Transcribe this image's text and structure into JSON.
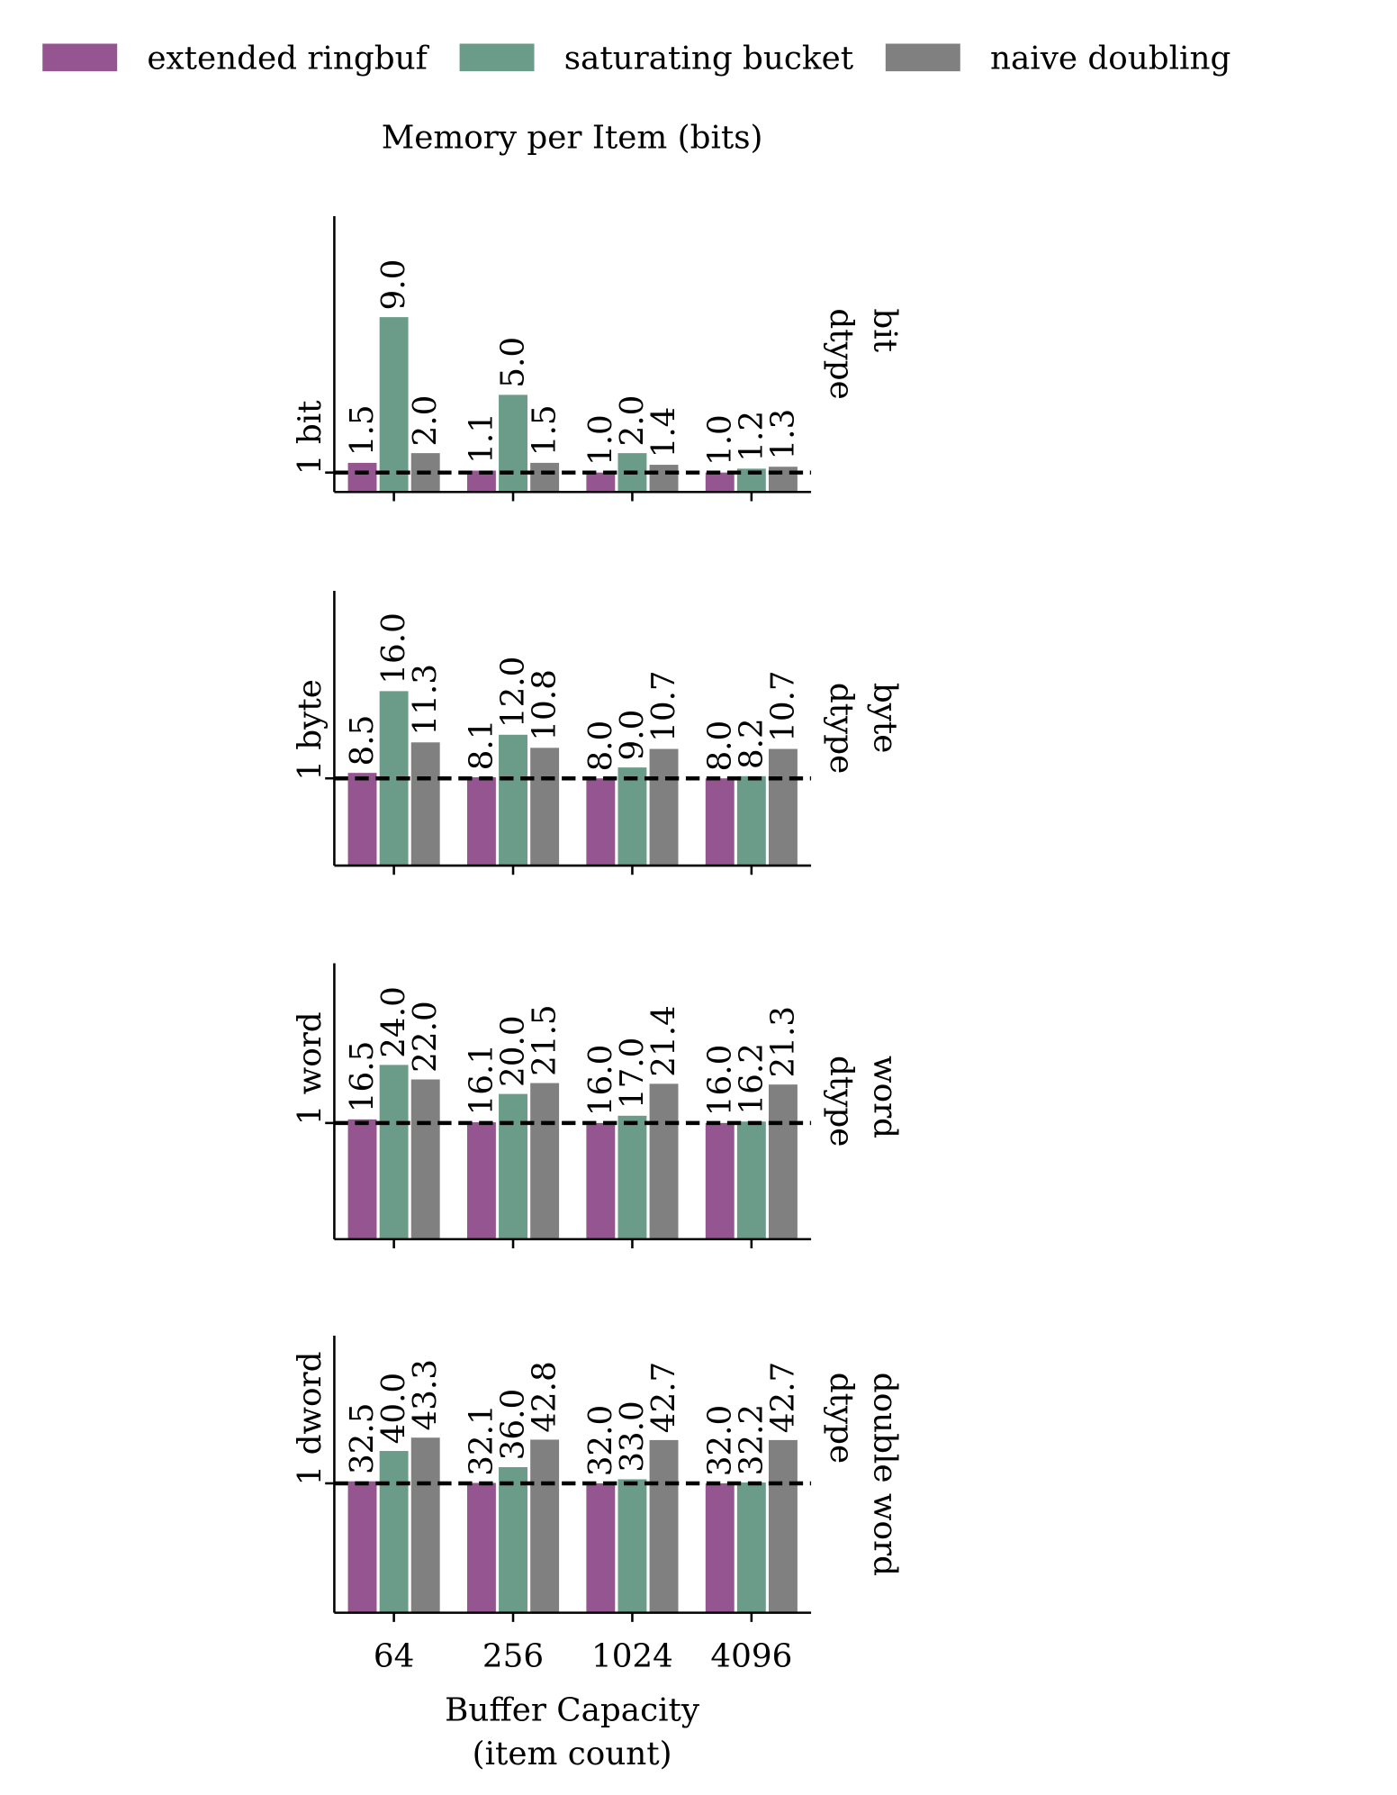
{
  "chart_data": [
    {
      "type": "bar",
      "title": "Memory per Item (bits)",
      "series": [
        {
          "name": "extended ringbuf",
          "color": "#955590",
          "values": [
            1.5,
            1.1,
            1.0,
            1.0
          ],
          "value_labels": [
            "1.5",
            "1.1",
            "1.0",
            "1.0"
          ]
        },
        {
          "name": "saturating bucket",
          "color": "#6a9c89",
          "values": [
            9.0,
            5.0,
            2.0,
            1.2
          ],
          "value_labels": [
            "9.0",
            "5.0",
            "2.0",
            "1.2"
          ]
        },
        {
          "name": "naive doubling",
          "color": "#808080",
          "values": [
            2.0,
            1.5,
            1.4,
            1.3
          ],
          "value_labels": [
            "2.0",
            "1.5",
            "1.4",
            "1.3"
          ]
        }
      ],
      "ylim": [
        0,
        14.2
      ],
      "yticks": [
        {
          "value": 1,
          "label": "1 bit"
        }
      ],
      "reference_line": true,
      "facet_label": [
        "bit",
        "dtype"
      ]
    },
    {
      "type": "bar",
      "series": [
        {
          "color": "#955590",
          "values": [
            8.5,
            8.1,
            8.0,
            8.0
          ],
          "value_labels": [
            "8.5",
            "8.1",
            "8.0",
            "8.0"
          ]
        },
        {
          "color": "#6a9c89",
          "values": [
            16.0,
            12.0,
            9.0,
            8.2
          ],
          "value_labels": [
            "16.0",
            "12.0",
            "9.0",
            "8.2"
          ]
        },
        {
          "color": "#808080",
          "values": [
            11.3,
            10.8,
            10.7,
            10.7
          ],
          "value_labels": [
            "11.3",
            "10.8",
            "10.7",
            "10.7"
          ]
        }
      ],
      "ylim": [
        0,
        25.2
      ],
      "yticks": [
        {
          "value": 8,
          "label": "1 byte"
        }
      ],
      "reference_line": true,
      "facet_label": [
        "byte",
        "dtype"
      ]
    },
    {
      "type": "bar",
      "series": [
        {
          "color": "#955590",
          "values": [
            16.5,
            16.1,
            16.0,
            16.0
          ],
          "value_labels": [
            "16.5",
            "16.1",
            "16.0",
            "16.0"
          ]
        },
        {
          "color": "#6a9c89",
          "values": [
            24.0,
            20.0,
            17.0,
            16.2
          ],
          "value_labels": [
            "24.0",
            "20.0",
            "17.0",
            "16.2"
          ]
        },
        {
          "color": "#808080",
          "values": [
            22.0,
            21.5,
            21.4,
            21.3
          ],
          "value_labels": [
            "22.0",
            "21.5",
            "21.4",
            "21.3"
          ]
        }
      ],
      "ylim": [
        0,
        38
      ],
      "yticks": [
        {
          "value": 16,
          "label": "1 word"
        }
      ],
      "reference_line": true,
      "facet_label": [
        "word",
        "dtype"
      ]
    },
    {
      "type": "bar",
      "categories": [
        "64",
        "256",
        "1024",
        "4096"
      ],
      "series": [
        {
          "color": "#955590",
          "values": [
            32.5,
            32.1,
            32.0,
            32.0
          ],
          "value_labels": [
            "32.5",
            "32.1",
            "32.0",
            "32.0"
          ]
        },
        {
          "color": "#6a9c89",
          "values": [
            40.0,
            36.0,
            33.0,
            32.2
          ],
          "value_labels": [
            "40.0",
            "36.0",
            "33.0",
            "32.2"
          ]
        },
        {
          "color": "#808080",
          "values": [
            43.3,
            42.8,
            42.7,
            42.7
          ],
          "value_labels": [
            "43.3",
            "42.8",
            "42.7",
            "42.7"
          ]
        }
      ],
      "ylim": [
        0,
        68.5
      ],
      "yticks": [
        {
          "value": 32,
          "label": "1 dword"
        }
      ],
      "reference_line": true,
      "facet_label": [
        "double word",
        "dtype"
      ],
      "xlabel": [
        "Buffer Capacity",
        "(item count)"
      ]
    }
  ]
}
